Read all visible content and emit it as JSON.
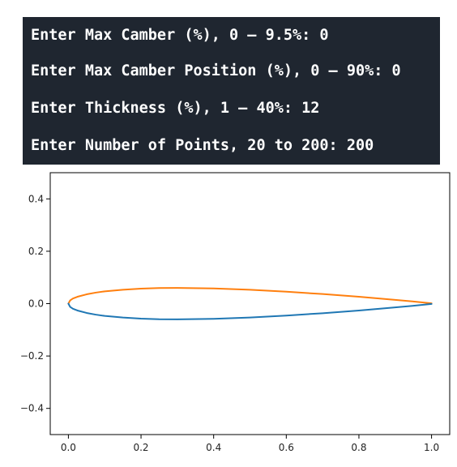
{
  "console": {
    "lines": [
      "Enter Max Camber (%), 0 – 9.5%: 0",
      "Enter Max Camber Position (%), 0 – 90%: 0",
      "Enter Thickness (%), 1 – 40%: 12",
      "Enter Number of Points, 20 to 200: 200"
    ]
  },
  "chart_data": {
    "type": "line",
    "title": "",
    "xlabel": "",
    "ylabel": "",
    "xlim": [
      -0.05,
      1.05
    ],
    "ylim": [
      -0.5,
      0.5
    ],
    "xticks": [
      0.0,
      0.2,
      0.4,
      0.6,
      0.8,
      1.0
    ],
    "yticks": [
      -0.4,
      -0.2,
      0.0,
      0.2,
      0.4
    ],
    "xtick_labels": [
      "0.0",
      "0.2",
      "0.4",
      "0.6",
      "0.8",
      "1.0"
    ],
    "ytick_labels": [
      "−0.4",
      "−0.2",
      "0.0",
      "0.2",
      "0.4"
    ],
    "x": [
      0.0,
      0.005,
      0.0125,
      0.025,
      0.05,
      0.075,
      0.1,
      0.15,
      0.2,
      0.25,
      0.3,
      0.4,
      0.5,
      0.6,
      0.7,
      0.8,
      0.9,
      0.95,
      1.0
    ],
    "series": [
      {
        "name": "upper",
        "color": "#ff7f0e",
        "values": [
          0.0,
          0.0127,
          0.0195,
          0.0263,
          0.0355,
          0.042,
          0.0468,
          0.0531,
          0.0574,
          0.0596,
          0.06,
          0.058,
          0.0529,
          0.0456,
          0.0366,
          0.0262,
          0.0145,
          0.0081,
          0.0013
        ]
      },
      {
        "name": "lower",
        "color": "#1f77b4",
        "values": [
          0.0,
          -0.0127,
          -0.0195,
          -0.0263,
          -0.0355,
          -0.042,
          -0.0468,
          -0.0531,
          -0.0574,
          -0.0596,
          -0.06,
          -0.058,
          -0.0529,
          -0.0456,
          -0.0366,
          -0.0262,
          -0.0145,
          -0.0081,
          -0.0013
        ]
      }
    ]
  }
}
